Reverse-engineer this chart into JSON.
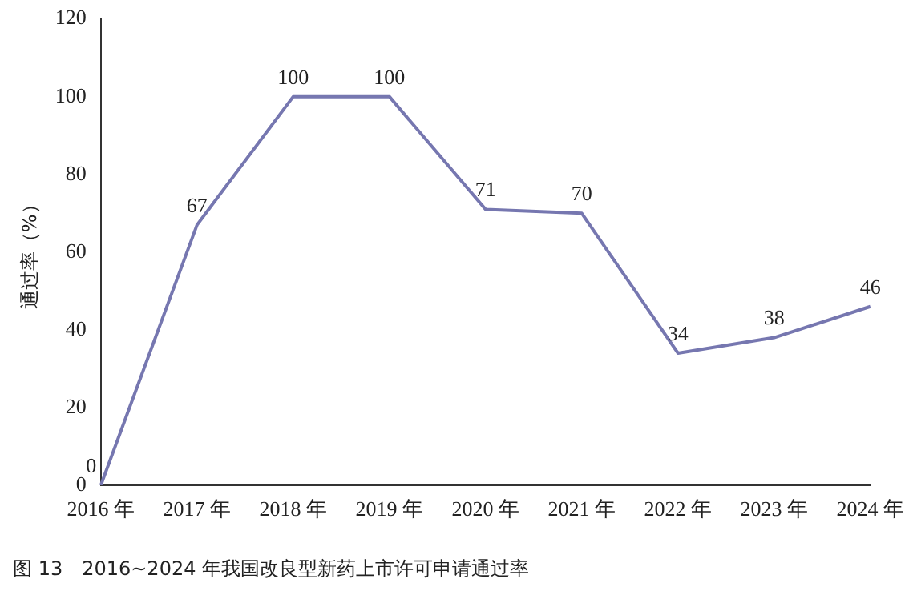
{
  "chart_data": {
    "type": "line",
    "title": "图 13　2016~2024 年我国改良型新药上市许可申请通过率",
    "ylabel": "通过率（%）",
    "categories": [
      "2016 年",
      "2017 年",
      "2018 年",
      "2019 年",
      "2020 年",
      "2021 年",
      "2022 年",
      "2023 年",
      "2024 年"
    ],
    "series": [
      {
        "color": "#7677b0",
        "values": [
          0,
          67,
          100,
          100,
          71,
          70,
          34,
          38,
          46
        ]
      }
    ],
    "ylim": [
      0,
      120
    ],
    "yticks": [
      0,
      20,
      40,
      60,
      80,
      100,
      120
    ],
    "grid": false,
    "legend": false,
    "marker": "none",
    "line_style": "solid",
    "data_labels": true
  }
}
